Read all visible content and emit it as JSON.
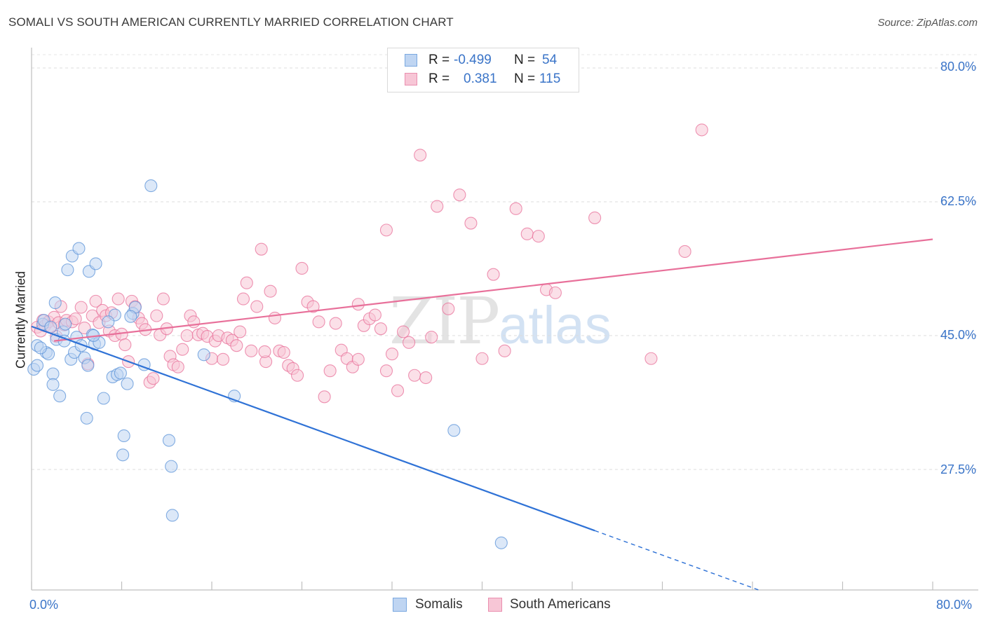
{
  "title": "SOMALI VS SOUTH AMERICAN CURRENTLY MARRIED CORRELATION CHART",
  "source": "Source: ZipAtlas.com",
  "watermark": {
    "zip": "ZIP",
    "atlas": "atlas"
  },
  "legend": {
    "rows": [
      {
        "r_label": "R =",
        "r_value": "-0.499",
        "n_label": "N =",
        "n_value": "54",
        "color": "#7aa8e0",
        "fill": "#bfd5f2"
      },
      {
        "r_label": "R =",
        "r_value": "0.381",
        "n_label": "N =",
        "n_value": "115",
        "color": "#ea8faf",
        "fill": "#f7c6d6"
      }
    ]
  },
  "bottom_legend": [
    {
      "label": "Somalis",
      "color": "#7aa8e0",
      "fill": "#bfd5f2"
    },
    {
      "label": "South Americans",
      "color": "#ea8faf",
      "fill": "#f7c6d6"
    }
  ],
  "chart_data": {
    "type": "scatter",
    "title": "SOMALI VS SOUTH AMERICAN CURRENTLY MARRIED CORRELATION CHART",
    "xlabel": "",
    "ylabel": "Currently Married",
    "xlim": [
      0,
      80
    ],
    "ylim": [
      10,
      82
    ],
    "x_tick_labels": [
      "0.0%",
      "80.0%"
    ],
    "y_ticks": [
      27.5,
      45.0,
      62.5,
      80.0
    ],
    "y_tick_labels": [
      "27.5%",
      "45.0%",
      "62.5%",
      "80.0%"
    ],
    "grid": "horizontal dashed",
    "legend_position": "top-center",
    "series": [
      {
        "name": "Somalis",
        "color": "#5b93d8",
        "fill": "#bfd5f2",
        "trend": {
          "x_solid": [
            0,
            50
          ],
          "y_solid": [
            46.2,
            19.5
          ],
          "x_dash": [
            50,
            80
          ],
          "y_dash": [
            19.5,
            3.5
          ]
        },
        "points": [
          [
            0.2,
            40.6
          ],
          [
            0.5,
            41.1
          ],
          [
            0.5,
            43.7
          ],
          [
            1.0,
            46.5
          ],
          [
            1.1,
            47.0
          ],
          [
            1.3,
            42.8
          ],
          [
            1.5,
            42.6
          ],
          [
            1.9,
            40.0
          ],
          [
            1.9,
            38.6
          ],
          [
            2.1,
            49.3
          ],
          [
            2.2,
            44.5
          ],
          [
            2.5,
            37.1
          ],
          [
            2.8,
            45.5
          ],
          [
            2.9,
            44.3
          ],
          [
            3.2,
            53.6
          ],
          [
            3.5,
            41.9
          ],
          [
            3.6,
            55.4
          ],
          [
            3.8,
            42.8
          ],
          [
            4.0,
            44.8
          ],
          [
            4.2,
            56.4
          ],
          [
            4.4,
            43.7
          ],
          [
            4.7,
            42.1
          ],
          [
            4.9,
            34.2
          ],
          [
            5.0,
            41.1
          ],
          [
            5.1,
            53.4
          ],
          [
            5.4,
            45.1
          ],
          [
            5.6,
            43.9
          ],
          [
            5.7,
            54.4
          ],
          [
            6.0,
            44.1
          ],
          [
            6.4,
            36.8
          ],
          [
            7.2,
            39.6
          ],
          [
            7.4,
            47.7
          ],
          [
            7.6,
            39.9
          ],
          [
            7.9,
            40.1
          ],
          [
            8.1,
            29.4
          ],
          [
            8.2,
            31.9
          ],
          [
            8.5,
            38.7
          ],
          [
            9.0,
            47.9
          ],
          [
            9.2,
            48.7
          ],
          [
            10.0,
            41.2
          ],
          [
            10.6,
            64.6
          ],
          [
            12.2,
            31.3
          ],
          [
            12.4,
            27.9
          ],
          [
            12.5,
            21.5
          ],
          [
            15.3,
            42.5
          ],
          [
            18.0,
            37.1
          ],
          [
            37.5,
            32.6
          ],
          [
            41.7,
            17.9
          ],
          [
            0.8,
            43.4
          ],
          [
            1.7,
            46.1
          ],
          [
            6.8,
            46.8
          ],
          [
            3.0,
            46.5
          ],
          [
            8.8,
            47.5
          ],
          [
            5.5,
            45.0
          ]
        ]
      },
      {
        "name": "South Americans",
        "color": "#e8709a",
        "fill": "#f7c6d6",
        "trend": {
          "x_solid": [
            2,
            80
          ],
          "y_solid": [
            44.3,
            57.6
          ]
        },
        "points": [
          [
            0.5,
            46.1
          ],
          [
            0.8,
            45.6
          ],
          [
            1.0,
            47.0
          ],
          [
            1.2,
            46.3
          ],
          [
            1.5,
            46.8
          ],
          [
            1.7,
            46.2
          ],
          [
            2.0,
            47.4
          ],
          [
            2.2,
            44.9
          ],
          [
            2.4,
            46.7
          ],
          [
            2.6,
            48.8
          ],
          [
            2.9,
            46.4
          ],
          [
            3.1,
            47.0
          ],
          [
            3.6,
            46.8
          ],
          [
            3.9,
            47.2
          ],
          [
            4.4,
            48.7
          ],
          [
            4.7,
            46.0
          ],
          [
            5.0,
            41.3
          ],
          [
            5.4,
            47.6
          ],
          [
            5.7,
            49.5
          ],
          [
            6.0,
            46.7
          ],
          [
            6.3,
            48.3
          ],
          [
            6.6,
            47.6
          ],
          [
            6.9,
            45.6
          ],
          [
            7.1,
            48.0
          ],
          [
            7.4,
            45.0
          ],
          [
            7.7,
            49.8
          ],
          [
            8.0,
            45.2
          ],
          [
            8.3,
            43.8
          ],
          [
            8.6,
            41.6
          ],
          [
            8.9,
            49.5
          ],
          [
            9.2,
            48.8
          ],
          [
            9.5,
            47.3
          ],
          [
            9.8,
            46.6
          ],
          [
            10.1,
            45.8
          ],
          [
            10.5,
            38.9
          ],
          [
            10.8,
            39.4
          ],
          [
            11.1,
            47.6
          ],
          [
            11.4,
            45.1
          ],
          [
            11.7,
            49.8
          ],
          [
            12.0,
            45.9
          ],
          [
            12.3,
            42.3
          ],
          [
            12.6,
            41.2
          ],
          [
            13.0,
            40.9
          ],
          [
            13.4,
            43.2
          ],
          [
            13.8,
            45.0
          ],
          [
            14.1,
            47.6
          ],
          [
            14.4,
            46.8
          ],
          [
            14.8,
            45.1
          ],
          [
            15.2,
            45.3
          ],
          [
            15.6,
            44.9
          ],
          [
            16.0,
            42.0
          ],
          [
            16.3,
            44.3
          ],
          [
            16.6,
            45.0
          ],
          [
            17.0,
            41.9
          ],
          [
            17.4,
            44.7
          ],
          [
            17.8,
            44.4
          ],
          [
            18.2,
            43.7
          ],
          [
            18.5,
            45.5
          ],
          [
            18.8,
            49.8
          ],
          [
            19.1,
            51.9
          ],
          [
            19.5,
            43.0
          ],
          [
            20.0,
            48.8
          ],
          [
            20.4,
            56.3
          ],
          [
            20.8,
            41.6
          ],
          [
            21.2,
            50.8
          ],
          [
            21.6,
            47.3
          ],
          [
            22.0,
            43.0
          ],
          [
            22.4,
            42.8
          ],
          [
            22.8,
            41.1
          ],
          [
            23.2,
            40.7
          ],
          [
            23.6,
            39.8
          ],
          [
            24.0,
            53.8
          ],
          [
            24.5,
            49.4
          ],
          [
            25.0,
            48.8
          ],
          [
            25.5,
            46.8
          ],
          [
            26.0,
            37.0
          ],
          [
            26.5,
            40.4
          ],
          [
            27.0,
            46.6
          ],
          [
            27.5,
            43.1
          ],
          [
            28.0,
            42.0
          ],
          [
            28.5,
            40.9
          ],
          [
            29.0,
            41.9
          ],
          [
            29.5,
            46.3
          ],
          [
            30.0,
            47.2
          ],
          [
            30.5,
            47.7
          ],
          [
            31.0,
            45.9
          ],
          [
            31.5,
            40.4
          ],
          [
            32.0,
            42.6
          ],
          [
            32.5,
            37.8
          ],
          [
            33.0,
            45.5
          ],
          [
            33.5,
            44.1
          ],
          [
            34.0,
            39.8
          ],
          [
            34.5,
            68.6
          ],
          [
            35.0,
            39.5
          ],
          [
            35.5,
            44.8
          ],
          [
            36.0,
            61.9
          ],
          [
            37.0,
            48.5
          ],
          [
            38.0,
            63.4
          ],
          [
            39.0,
            59.7
          ],
          [
            40.0,
            42.0
          ],
          [
            41.0,
            53.0
          ],
          [
            42.0,
            43.0
          ],
          [
            43.0,
            61.6
          ],
          [
            44.0,
            58.3
          ],
          [
            45.0,
            58.0
          ],
          [
            45.7,
            51.0
          ],
          [
            46.5,
            50.6
          ],
          [
            31.5,
            58.8
          ],
          [
            50.0,
            60.4
          ],
          [
            55.0,
            42.0
          ],
          [
            58.0,
            56.0
          ],
          [
            59.5,
            71.9
          ],
          [
            20.7,
            42.9
          ],
          [
            29.0,
            49.1
          ]
        ]
      }
    ]
  }
}
